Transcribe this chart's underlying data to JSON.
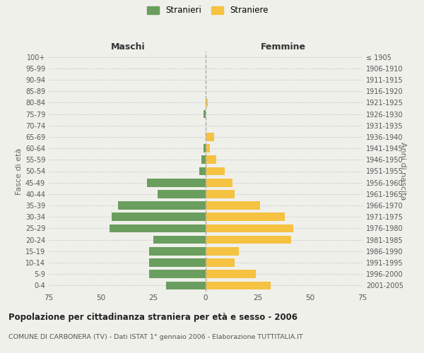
{
  "age_groups": [
    "100+",
    "95-99",
    "90-94",
    "85-89",
    "80-84",
    "75-79",
    "70-74",
    "65-69",
    "60-64",
    "55-59",
    "50-54",
    "45-49",
    "40-44",
    "35-39",
    "30-34",
    "25-29",
    "20-24",
    "15-19",
    "10-14",
    "5-9",
    "0-4"
  ],
  "birth_years": [
    "≤ 1905",
    "1906-1910",
    "1911-1915",
    "1916-1920",
    "1921-1925",
    "1926-1930",
    "1931-1935",
    "1936-1940",
    "1941-1945",
    "1946-1950",
    "1951-1955",
    "1956-1960",
    "1961-1965",
    "1966-1970",
    "1971-1975",
    "1976-1980",
    "1981-1985",
    "1986-1990",
    "1991-1995",
    "1996-2000",
    "2001-2005"
  ],
  "maschi": [
    0,
    0,
    0,
    0,
    0,
    1,
    0,
    0,
    1,
    2,
    3,
    28,
    23,
    42,
    45,
    46,
    25,
    27,
    27,
    27,
    19
  ],
  "femmine": [
    0,
    0,
    0,
    0,
    1,
    0,
    0,
    4,
    2,
    5,
    9,
    13,
    14,
    26,
    38,
    42,
    41,
    16,
    14,
    24,
    31
  ],
  "color_maschi": "#6a9e5e",
  "color_femmine": "#f5c242",
  "title": "Popolazione per cittadinanza straniera per età e sesso - 2006",
  "subtitle": "COMUNE DI CARBONERA (TV) - Dati ISTAT 1° gennaio 2006 - Elaborazione TUTTITALIA.IT",
  "xlabel_left": "Maschi",
  "xlabel_right": "Femmine",
  "ylabel_left": "Fasce di età",
  "ylabel_right": "Anni di nascita",
  "legend_maschi": "Stranieri",
  "legend_femmine": "Straniere",
  "xlim": 75,
  "background_color": "#f0f0eb"
}
